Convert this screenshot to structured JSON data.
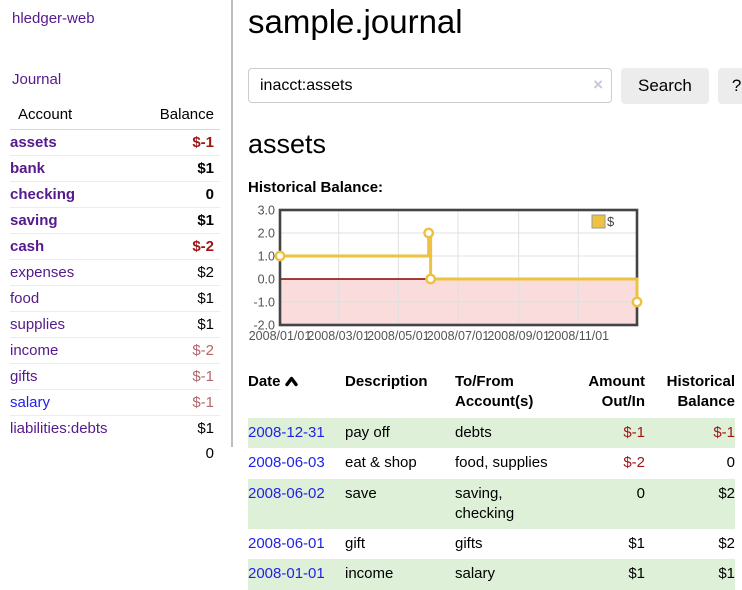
{
  "sidebar": {
    "brand": "hledger-web",
    "journal_link": "Journal",
    "accounts_table": {
      "headers": {
        "account": "Account",
        "balance": "Balance"
      },
      "rows": [
        {
          "name": "assets",
          "balance": "$-1",
          "level": 1,
          "bold": true,
          "balance_color": "neg",
          "link_color": "purple"
        },
        {
          "name": "bank",
          "balance": "$1",
          "level": 2,
          "bold": true,
          "balance_color": "pos",
          "link_color": "purple"
        },
        {
          "name": "checking",
          "balance": "0",
          "level": 3,
          "bold": true,
          "balance_color": "pos",
          "link_color": "purple"
        },
        {
          "name": "saving",
          "balance": "$1",
          "level": 3,
          "bold": true,
          "balance_color": "pos",
          "link_color": "purple"
        },
        {
          "name": "cash",
          "balance": "$-2",
          "level": 2,
          "bold": true,
          "balance_color": "neg",
          "link_color": "purple"
        },
        {
          "name": "expenses",
          "balance": "$2",
          "level": 1,
          "bold": false,
          "balance_color": "pos",
          "link_color": "purple"
        },
        {
          "name": "food",
          "balance": "$1",
          "level": 2,
          "bold": false,
          "balance_color": "pos",
          "link_color": "purple"
        },
        {
          "name": "supplies",
          "balance": "$1",
          "level": 2,
          "bold": false,
          "balance_color": "pos",
          "link_color": "purple"
        },
        {
          "name": "income",
          "balance": "$-2",
          "level": 1,
          "bold": false,
          "balance_color": "negm",
          "link_color": "purple"
        },
        {
          "name": "gifts",
          "balance": "$-1",
          "level": 2,
          "bold": false,
          "balance_color": "negm",
          "link_color": "purple"
        },
        {
          "name": "salary",
          "balance": "$-1",
          "level": 2,
          "bold": false,
          "balance_color": "negm",
          "link_color": "blue"
        },
        {
          "name": "liabilities:debts",
          "balance": "$1",
          "level": 1,
          "bold": false,
          "balance_color": "pos",
          "link_color": "purple"
        }
      ],
      "total": "0"
    }
  },
  "header": {
    "title": "sample.journal"
  },
  "search": {
    "value": "inacct:assets",
    "clear_icon": "×",
    "search_button": "Search",
    "help_button": "?"
  },
  "account_page": {
    "heading": "assets",
    "chart_label": "Historical Balance:"
  },
  "chart_data": {
    "type": "line",
    "title": "Historical Balance",
    "step": true,
    "legend": {
      "label": "$",
      "position": "top-right"
    },
    "series": [
      {
        "name": "$",
        "color": "#edc240",
        "points": [
          {
            "date": "2008-01-01",
            "day": 0,
            "value": 1
          },
          {
            "date": "2008-06-01",
            "day": 152,
            "value": 2
          },
          {
            "date": "2008-06-03",
            "day": 154,
            "value": 0
          },
          {
            "date": "2008-12-31",
            "day": 365,
            "value": -1
          }
        ]
      }
    ],
    "ylim": [
      -2,
      3
    ],
    "yticks": [
      3.0,
      2.0,
      1.0,
      0.0,
      -1.0,
      -2.0
    ],
    "xticks": [
      {
        "label": "2008/01/01",
        "day": 0
      },
      {
        "label": "2008/03/01",
        "day": 60
      },
      {
        "label": "2008/05/01",
        "day": 121
      },
      {
        "label": "2008/07/01",
        "day": 182
      },
      {
        "label": "2008/09/01",
        "day": 244
      },
      {
        "label": "2008/11/01",
        "day": 305
      }
    ],
    "x_range_days": [
      0,
      365
    ],
    "grid": true,
    "negative_region_color": "#fadcdc",
    "zero_line_color": "#8b0000",
    "grid_color": "#e0e0e0",
    "border_color": "#444444"
  },
  "register_table": {
    "headers": {
      "date": "Date",
      "sort_icon": "chevron-up-icon",
      "description": "Description",
      "accounts": "To/From\nAccount(s)",
      "amount": "Amount\nOut/In",
      "balance": "Historical\nBalance"
    },
    "rows": [
      {
        "date": "2008-12-31",
        "description": "pay off",
        "accounts": "debts",
        "amount": "$-1",
        "amount_neg": true,
        "balance": "$-1",
        "balance_neg": true,
        "shaded": true
      },
      {
        "date": "2008-06-03",
        "description": "eat & shop",
        "accounts": "food, supplies",
        "amount": "$-2",
        "amount_neg": true,
        "balance": "0",
        "balance_neg": false,
        "shaded": false
      },
      {
        "date": "2008-06-02",
        "description": "save",
        "accounts": "saving,\nchecking",
        "amount": "0",
        "amount_neg": false,
        "balance": "$2",
        "balance_neg": false,
        "shaded": true
      },
      {
        "date": "2008-06-01",
        "description": "gift",
        "accounts": "gifts",
        "amount": "$1",
        "amount_neg": false,
        "balance": "$2",
        "balance_neg": false,
        "shaded": false
      },
      {
        "date": "2008-01-01",
        "description": "income",
        "accounts": "salary",
        "amount": "$1",
        "amount_neg": false,
        "balance": "$1",
        "balance_neg": false,
        "shaded": true
      }
    ]
  },
  "colors": {
    "link_purple": "#551a8b",
    "link_blue": "#2222e6",
    "negative": "#a31515",
    "negative_muted": "#b5666b",
    "row_shade_green": "#dff0d8",
    "series_gold": "#edc240"
  }
}
